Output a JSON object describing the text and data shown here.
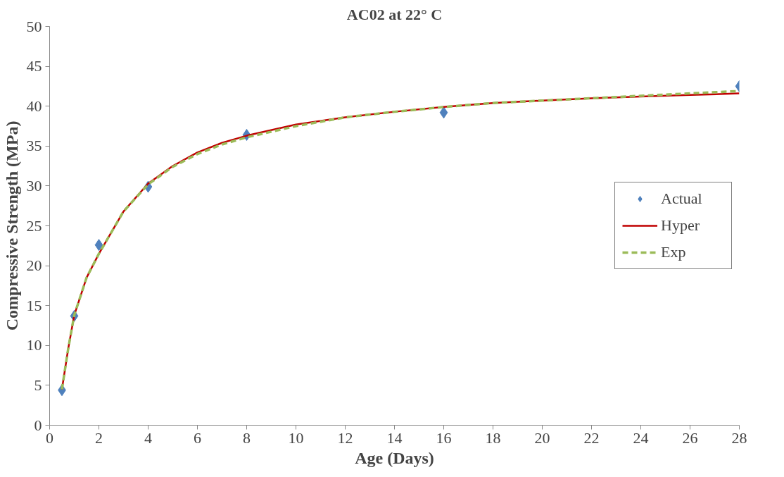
{
  "chart_data": {
    "type": "scatter",
    "title": "AC02 at 22° C",
    "xlabel": "Age (Days)",
    "ylabel": "Compressive Strength (MPa)",
    "xlim": [
      0,
      28
    ],
    "xticks": [
      0,
      2,
      4,
      6,
      8,
      10,
      12,
      14,
      16,
      18,
      20,
      22,
      24,
      26,
      28
    ],
    "ylim": [
      0,
      50
    ],
    "yticks": [
      0,
      5,
      10,
      15,
      20,
      25,
      30,
      35,
      40,
      45,
      50
    ],
    "grid": false,
    "legend": "right",
    "series": [
      {
        "name": "Actual",
        "marker": "diamond",
        "color": "#4f81bd",
        "x": [
          0.5,
          1,
          2,
          4,
          8,
          16,
          28
        ],
        "values": [
          4.4,
          13.7,
          22.6,
          29.9,
          36.4,
          39.2,
          42.5
        ]
      },
      {
        "name": "Hyper",
        "type": "line",
        "line_style": "solid",
        "color": "#c00000",
        "x": [
          0.5,
          0.75,
          1,
          1.5,
          2,
          3,
          4,
          5,
          6,
          7,
          8,
          10,
          12,
          14,
          16,
          18,
          20,
          22,
          24,
          26,
          28
        ],
        "values": [
          4.5,
          9.5,
          13.8,
          18.5,
          21.5,
          26.8,
          30.3,
          32.5,
          34.2,
          35.4,
          36.3,
          37.7,
          38.6,
          39.3,
          39.9,
          40.4,
          40.7,
          41.0,
          41.2,
          41.4,
          41.6
        ]
      },
      {
        "name": "Exp",
        "type": "line",
        "line_style": "dashed",
        "color": "#9bbb59",
        "x": [
          0.5,
          0.75,
          1,
          1.5,
          2,
          3,
          4,
          5,
          6,
          7,
          8,
          10,
          12,
          14,
          16,
          18,
          20,
          22,
          24,
          26,
          28
        ],
        "values": [
          4.5,
          9.5,
          13.8,
          18.5,
          21.5,
          26.8,
          30.2,
          32.4,
          34.0,
          35.2,
          36.1,
          37.5,
          38.6,
          39.3,
          39.9,
          40.4,
          40.7,
          41.0,
          41.3,
          41.6,
          41.9
        ]
      }
    ]
  }
}
